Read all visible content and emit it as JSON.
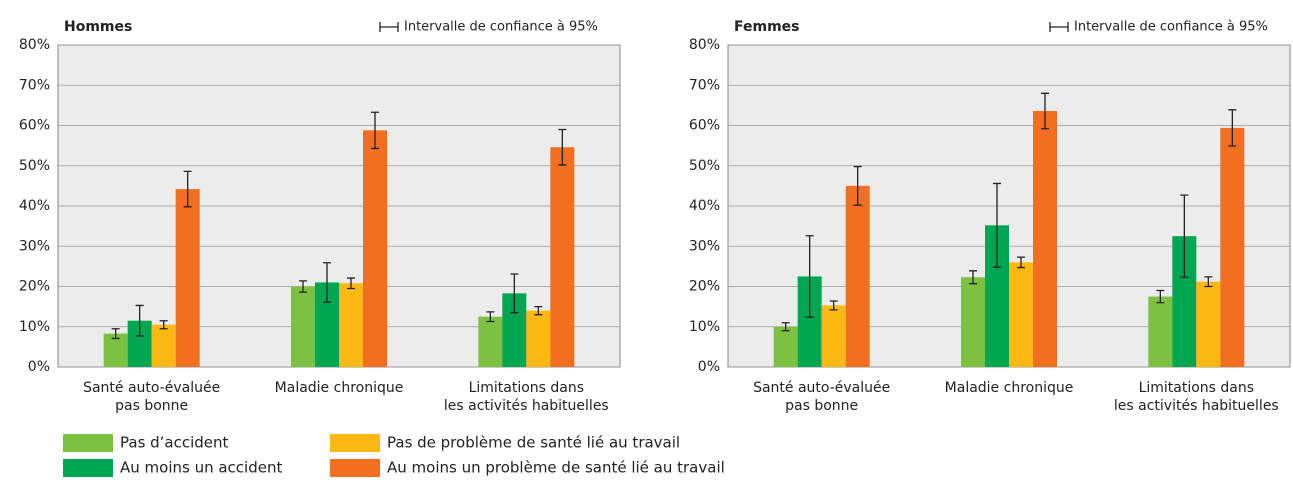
{
  "chart_data": [
    {
      "type": "bar",
      "title": "Hommes",
      "annotation": "Intervalle de confiance à 95%",
      "categories": [
        [
          "Santé auto-évaluée",
          "pas bonne"
        ],
        [
          "Maladie chronique"
        ],
        [
          "Limitations dans",
          "les activités habituelles"
        ]
      ],
      "series": [
        {
          "name": "Pas d’accident",
          "color": "#7dc142",
          "values": [
            8.3,
            20,
            12.5
          ],
          "errors": [
            1.2,
            1.4,
            1.2
          ]
        },
        {
          "name": "Au moins un accident",
          "color": "#00a651",
          "values": [
            11.5,
            21,
            18.3
          ],
          "errors": [
            3.8,
            4.9,
            4.8
          ]
        },
        {
          "name": "Pas de problème de santé lié au travail",
          "color": "#fdb913",
          "values": [
            10.5,
            20.8,
            14
          ],
          "errors": [
            1,
            1.3,
            1
          ]
        },
        {
          "name": "Au moins un problème de santé lié au travail",
          "color": "#f26f21",
          "values": [
            44.2,
            58.8,
            54.6
          ],
          "errors": [
            4.4,
            4.5,
            4.4
          ]
        }
      ],
      "ylim": [
        0,
        80
      ],
      "yticks": [
        {
          "value": 0,
          "label": "0%"
        },
        {
          "value": 10,
          "label": "10%"
        },
        {
          "value": 20,
          "label": "20%"
        },
        {
          "value": 30,
          "label": "30%"
        },
        {
          "value": 40,
          "label": "40%"
        },
        {
          "value": 50,
          "label": "50%"
        },
        {
          "value": 60,
          "label": "60%"
        },
        {
          "value": 70,
          "label": "70%"
        },
        {
          "value": 80,
          "label": "80%"
        }
      ],
      "grid": true
    },
    {
      "type": "bar",
      "title": "Femmes",
      "annotation": "Intervalle de confiance à 95%",
      "categories": [
        [
          "Santé auto-évaluée",
          "pas bonne"
        ],
        [
          "Maladie chronique"
        ],
        [
          "Limitations dans",
          "les activités habituelles"
        ]
      ],
      "series": [
        {
          "color": "#7dc142",
          "values": [
            10,
            22.3,
            17.5
          ],
          "errors": [
            1,
            1.6,
            1.5
          ]
        },
        {
          "color": "#00a651",
          "values": [
            22.5,
            35.2,
            32.5
          ],
          "errors": [
            10.1,
            10.4,
            10.2
          ]
        },
        {
          "color": "#fdb913",
          "values": [
            15.3,
            26,
            21.2
          ],
          "errors": [
            1.1,
            1.3,
            1.2
          ]
        },
        {
          "color": "#f26f21",
          "values": [
            45,
            63.6,
            59.4
          ],
          "errors": [
            4.8,
            4.4,
            4.5
          ]
        }
      ],
      "ylim": [
        0,
        80
      ],
      "yticks": [
        {
          "value": 0,
          "label": "0%"
        },
        {
          "value": 10,
          "label": "10%"
        },
        {
          "value": 20,
          "label": "20%"
        },
        {
          "value": 30,
          "label": "30%"
        },
        {
          "value": 40,
          "label": "40%"
        },
        {
          "value": 50,
          "label": "50%"
        },
        {
          "value": 60,
          "label": "60%"
        },
        {
          "value": 70,
          "label": "70%"
        },
        {
          "value": 80,
          "label": "80%"
        }
      ],
      "grid": true
    }
  ]
}
